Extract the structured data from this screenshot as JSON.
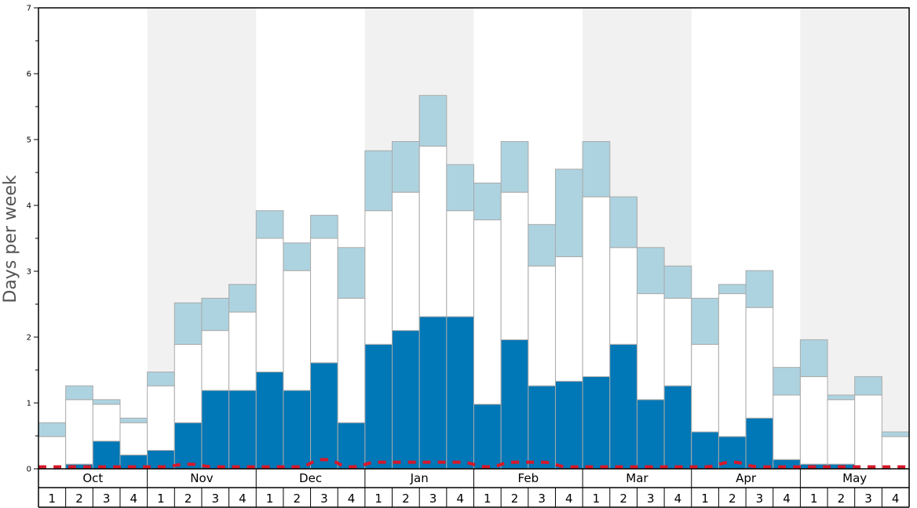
{
  "chart_data": {
    "type": "bar",
    "stacked": true,
    "ylabel": "Days per week",
    "ylim": [
      0,
      7
    ],
    "yticks": [
      0,
      1,
      2,
      3,
      4,
      5,
      6,
      7
    ],
    "grid": false,
    "alternating_month_shading": true,
    "months": [
      "Oct",
      "Nov",
      "Dec",
      "Jan",
      "Feb",
      "Mar",
      "Apr",
      "May"
    ],
    "week_labels": [
      "1",
      "2",
      "3",
      "4"
    ],
    "colors": {
      "bottom": "#0077b6",
      "middle": "#ffffff",
      "top": "#add3e0",
      "line": "#d7182a",
      "shade": "#f1f1f1",
      "bar_edge": "#aaaaaa"
    },
    "series": [
      {
        "values": [
          0.0,
          0.07,
          0.42,
          0.21,
          0.28,
          0.7,
          1.19,
          1.19,
          1.47,
          1.19,
          1.61,
          0.7,
          1.89,
          2.1,
          2.31,
          2.31,
          0.98,
          1.96,
          1.26,
          1.33,
          1.4,
          1.89,
          1.05,
          1.26,
          0.56,
          0.49,
          0.77,
          0.14,
          0.07,
          0.07,
          0.0,
          0.0
        ]
      },
      {
        "values": [
          0.49,
          0.98,
          0.56,
          0.49,
          0.98,
          1.19,
          0.91,
          1.19,
          2.03,
          1.82,
          1.89,
          1.89,
          2.03,
          2.1,
          2.59,
          1.61,
          2.8,
          2.24,
          1.82,
          1.89,
          2.73,
          1.47,
          1.61,
          1.33,
          1.33,
          2.17,
          1.68,
          0.98,
          1.33,
          0.98,
          1.12,
          0.49
        ]
      },
      {
        "values": [
          0.21,
          0.21,
          0.07,
          0.07,
          0.21,
          0.63,
          0.49,
          0.42,
          0.42,
          0.42,
          0.35,
          0.77,
          0.91,
          0.77,
          0.77,
          0.7,
          0.56,
          0.77,
          0.63,
          1.33,
          0.84,
          0.77,
          0.7,
          0.49,
          0.7,
          0.14,
          0.56,
          0.42,
          0.56,
          0.07,
          0.28,
          0.07
        ]
      },
      {
        "type": "line",
        "style": "dashed",
        "values": [
          0.03,
          0.03,
          0.03,
          0.03,
          0.03,
          0.07,
          0.03,
          0.03,
          0.03,
          0.03,
          0.14,
          0.03,
          0.1,
          0.1,
          0.1,
          0.1,
          0.03,
          0.1,
          0.1,
          0.03,
          0.03,
          0.03,
          0.03,
          0.03,
          0.03,
          0.1,
          0.03,
          0.03,
          0.03,
          0.03,
          0.03,
          0.03
        ]
      }
    ]
  }
}
